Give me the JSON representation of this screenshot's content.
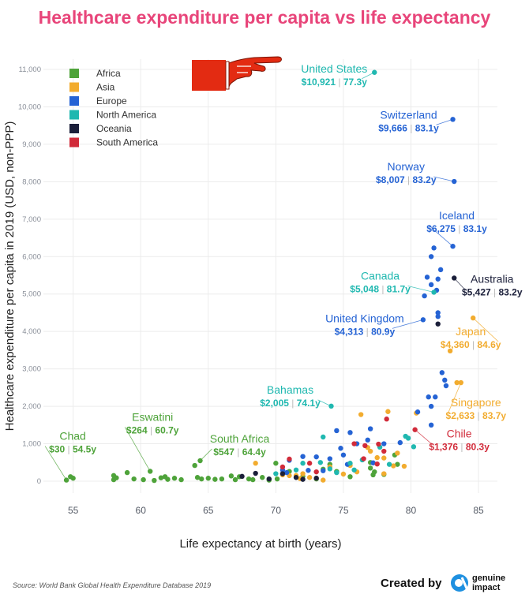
{
  "title": "Healthcare expenditure per capita vs life expectancy",
  "source": "Source: World Bank Global Health Expenditure Database 2019",
  "credit": {
    "created_by": "Created by",
    "brand_line1": "genuine",
    "brand_line2": "impact",
    "brand_color": "#1e90e0"
  },
  "pointer_icon": "pointing-hand-icon",
  "chart_data": {
    "type": "scatter",
    "title": "Healthcare expenditure per capita vs life expectancy",
    "xlabel": "Life expectancy at birth (years)",
    "ylabel": "Healthcare expenditure per capita in 2019 (USD, non-PPP)",
    "xlim": [
      52.8,
      86.4
    ],
    "ylim": [
      -316,
      11274
    ],
    "xticks": [
      55,
      60,
      65,
      70,
      75,
      80,
      85
    ],
    "xtick_labels": [
      "55",
      "60",
      "65",
      "70",
      "75",
      "80",
      "85"
    ],
    "yticks": [
      0,
      1000,
      2000,
      3000,
      4000,
      5000,
      6000,
      7000,
      8000,
      9000,
      10000,
      11000
    ],
    "ytick_labels": [
      "0",
      "1,000",
      "2,000",
      "3,000",
      "4,000",
      "5,000",
      "6,000",
      "7,000",
      "8,000",
      "9,000",
      "10,000",
      "11,000"
    ],
    "grid": true,
    "legend_position": "top-left",
    "series": [
      {
        "name": "Africa",
        "color": "#4ea33a",
        "points": [
          [
            54.5,
            30
          ],
          [
            54.8,
            120
          ],
          [
            55.0,
            80
          ],
          [
            58.0,
            150
          ],
          [
            58.2,
            90
          ],
          [
            58.0,
            40
          ],
          [
            59.0,
            230
          ],
          [
            59.5,
            60
          ],
          [
            60.2,
            40
          ],
          [
            60.7,
            264
          ],
          [
            61.0,
            20
          ],
          [
            61.5,
            90
          ],
          [
            61.8,
            120
          ],
          [
            62.0,
            50
          ],
          [
            62.5,
            80
          ],
          [
            63.0,
            40
          ],
          [
            64.0,
            420
          ],
          [
            64.2,
            100
          ],
          [
            64.4,
            547
          ],
          [
            64.5,
            60
          ],
          [
            65.0,
            80
          ],
          [
            65.5,
            50
          ],
          [
            66.0,
            60
          ],
          [
            66.7,
            140
          ],
          [
            67.0,
            40
          ],
          [
            67.3,
            120
          ],
          [
            68.0,
            60
          ],
          [
            68.3,
            40
          ],
          [
            69.0,
            100
          ],
          [
            69.5,
            30
          ],
          [
            70.0,
            480
          ],
          [
            70.1,
            60
          ],
          [
            71.0,
            260
          ],
          [
            72.0,
            130
          ],
          [
            73.0,
            60
          ],
          [
            73.5,
            320
          ],
          [
            74.0,
            450
          ],
          [
            74.5,
            260
          ],
          [
            75.5,
            120
          ],
          [
            77.0,
            350
          ],
          [
            77.3,
            250
          ],
          [
            77.0,
            500
          ],
          [
            78.8,
            700
          ],
          [
            79.0,
            450
          ],
          [
            78.0,
            180
          ],
          [
            77.2,
            170
          ]
        ]
      },
      {
        "name": "Asia",
        "color": "#f2ac2f",
        "points": [
          [
            68.5,
            480
          ],
          [
            70.5,
            170
          ],
          [
            71.0,
            150
          ],
          [
            71.5,
            150
          ],
          [
            71.8,
            70
          ],
          [
            72.0,
            200
          ],
          [
            72.5,
            100
          ],
          [
            73.0,
            80
          ],
          [
            73.5,
            30
          ],
          [
            74.0,
            380
          ],
          [
            75.0,
            190
          ],
          [
            75.5,
            420
          ],
          [
            76.0,
            250
          ],
          [
            76.3,
            1780
          ],
          [
            76.8,
            900
          ],
          [
            77.0,
            800
          ],
          [
            77.5,
            630
          ],
          [
            78.0,
            620
          ],
          [
            78.3,
            1860
          ],
          [
            78.0,
            200
          ],
          [
            78.7,
            410
          ],
          [
            79.0,
            750
          ],
          [
            79.5,
            400
          ],
          [
            80.4,
            1820
          ],
          [
            82.9,
            3480
          ],
          [
            83.4,
            2633
          ],
          [
            83.7,
            2633
          ],
          [
            84.6,
            4360
          ]
        ]
      },
      {
        "name": "Europe",
        "color": "#2563d4",
        "points": [
          [
            83.1,
            9666
          ],
          [
            83.2,
            8007
          ],
          [
            83.1,
            6275
          ],
          [
            80.9,
            4313
          ],
          [
            81.7,
            6230
          ],
          [
            81.5,
            6000
          ],
          [
            81.2,
            5450
          ],
          [
            81.5,
            5250
          ],
          [
            82.0,
            5400
          ],
          [
            82.2,
            5650
          ],
          [
            81.9,
            5100
          ],
          [
            81.0,
            4950
          ],
          [
            82.0,
            4500
          ],
          [
            82.0,
            4400
          ],
          [
            82.3,
            2900
          ],
          [
            82.5,
            2700
          ],
          [
            82.6,
            2550
          ],
          [
            81.8,
            2250
          ],
          [
            81.3,
            2250
          ],
          [
            81.5,
            2000
          ],
          [
            81.5,
            1500
          ],
          [
            80.5,
            1850
          ],
          [
            74.5,
            1350
          ],
          [
            75.5,
            1300
          ],
          [
            76.0,
            1000
          ],
          [
            77.0,
            1400
          ],
          [
            78.0,
            1000
          ],
          [
            75.0,
            700
          ],
          [
            73.0,
            650
          ],
          [
            74.0,
            600
          ],
          [
            72.0,
            660
          ],
          [
            71.0,
            560
          ],
          [
            70.5,
            300
          ],
          [
            72.4,
            290
          ],
          [
            73.5,
            280
          ],
          [
            75.3,
            450
          ],
          [
            77.2,
            490
          ],
          [
            76.8,
            1100
          ],
          [
            74.8,
            880
          ],
          [
            70.8,
            230
          ],
          [
            79.2,
            1030
          ]
        ]
      },
      {
        "name": "North America",
        "color": "#20b8b0",
        "points": [
          [
            77.3,
            10921
          ],
          [
            81.7,
            5048
          ],
          [
            74.1,
            2005
          ],
          [
            73.5,
            1180
          ],
          [
            79.6,
            1200
          ],
          [
            79.8,
            1150
          ],
          [
            80.2,
            920
          ],
          [
            73.3,
            500
          ],
          [
            74.0,
            330
          ],
          [
            71.5,
            300
          ],
          [
            72.0,
            480
          ],
          [
            75.5,
            480
          ],
          [
            76.4,
            570
          ],
          [
            77.7,
            910
          ],
          [
            75.8,
            300
          ],
          [
            78.4,
            450
          ],
          [
            74.5,
            230
          ],
          [
            70.0,
            200
          ]
        ]
      },
      {
        "name": "Oceania",
        "color": "#1b1f3a",
        "points": [
          [
            83.2,
            5427
          ],
          [
            82.0,
            4200
          ],
          [
            68.5,
            210
          ],
          [
            67.5,
            130
          ],
          [
            69.5,
            60
          ],
          [
            70.5,
            200
          ],
          [
            71.5,
            100
          ],
          [
            73.0,
            80
          ],
          [
            72.0,
            50
          ]
        ]
      },
      {
        "name": "South America",
        "color": "#d12b3a",
        "points": [
          [
            80.3,
            1376
          ],
          [
            78.2,
            1660
          ],
          [
            71.0,
            590
          ],
          [
            70.5,
            380
          ],
          [
            72.5,
            480
          ],
          [
            73.0,
            250
          ],
          [
            76.5,
            600
          ],
          [
            77.5,
            460
          ],
          [
            78.0,
            800
          ],
          [
            76.6,
            950
          ],
          [
            75.8,
            1000
          ],
          [
            77.6,
            990
          ]
        ]
      }
    ],
    "annotations": [
      {
        "country": "United States",
        "value": "$10,921",
        "life": "77.3y",
        "x": 77.3,
        "y": 10921,
        "series": "North America"
      },
      {
        "country": "Switzerland",
        "value": "$9,666",
        "life": "83.1y",
        "x": 83.1,
        "y": 9666,
        "series": "Europe"
      },
      {
        "country": "Norway",
        "value": "$8,007",
        "life": "83.2y",
        "x": 83.2,
        "y": 8007,
        "series": "Europe"
      },
      {
        "country": "Iceland",
        "value": "$6,275",
        "life": "83.1y",
        "x": 83.1,
        "y": 6275,
        "series": "Europe"
      },
      {
        "country": "Canada",
        "value": "$5,048",
        "life": "81.7y",
        "x": 81.7,
        "y": 5048,
        "series": "North America"
      },
      {
        "country": "Australia",
        "value": "$5,427",
        "life": "83.2y",
        "x": 83.2,
        "y": 5427,
        "series": "Oceania"
      },
      {
        "country": "United Kingdom",
        "value": "$4,313",
        "life": "80.9y",
        "x": 80.9,
        "y": 4313,
        "series": "Europe"
      },
      {
        "country": "Japan",
        "value": "$4,360",
        "life": "84.6y",
        "x": 84.6,
        "y": 4360,
        "series": "Asia"
      },
      {
        "country": "Singapore",
        "value": "$2,633",
        "life": "83.7y",
        "x": 83.7,
        "y": 2633,
        "series": "Asia"
      },
      {
        "country": "Chile",
        "value": "$1,376",
        "life": "80.3y",
        "x": 80.3,
        "y": 1376,
        "series": "South America"
      },
      {
        "country": "Bahamas",
        "value": "$2,005",
        "life": "74.1y",
        "x": 74.1,
        "y": 2005,
        "series": "North America"
      },
      {
        "country": "South Africa",
        "value": "$547",
        "life": "64.4y",
        "x": 64.4,
        "y": 547,
        "series": "Africa"
      },
      {
        "country": "Eswatini",
        "value": "$264",
        "life": "60.7y",
        "x": 60.7,
        "y": 264,
        "series": "Africa"
      },
      {
        "country": "Chad",
        "value": "$30",
        "life": "54.5y",
        "x": 54.5,
        "y": 30,
        "series": "Africa"
      }
    ]
  },
  "colors": {
    "title": "#e8457a",
    "annotation_dark": "#1b1f3a"
  }
}
